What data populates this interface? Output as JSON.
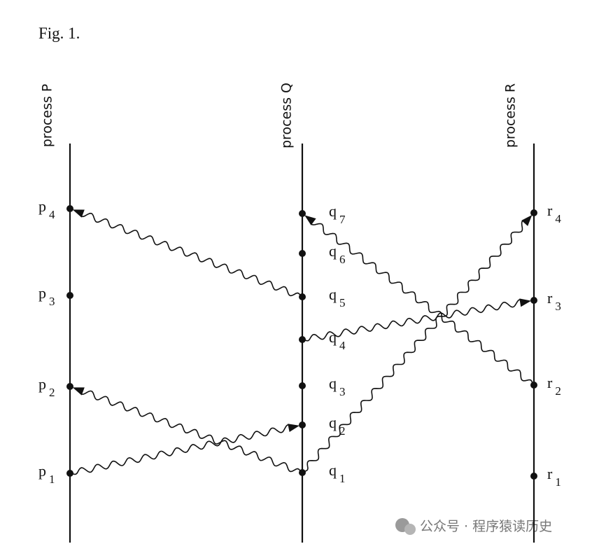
{
  "figure": {
    "title": "Fig. 1.",
    "processes": [
      {
        "label": "process P",
        "events": [
          {
            "name": "p",
            "sub": "1"
          },
          {
            "name": "p",
            "sub": "2"
          },
          {
            "name": "p",
            "sub": "3"
          },
          {
            "name": "p",
            "sub": "4"
          }
        ]
      },
      {
        "label": "process Q",
        "events": [
          {
            "name": "q",
            "sub": "1"
          },
          {
            "name": "q",
            "sub": "2"
          },
          {
            "name": "q",
            "sub": "3"
          },
          {
            "name": "q",
            "sub": "4"
          },
          {
            "name": "q",
            "sub": "5"
          },
          {
            "name": "q",
            "sub": "6"
          },
          {
            "name": "q",
            "sub": "7"
          }
        ]
      },
      {
        "label": "process R",
        "events": [
          {
            "name": "r",
            "sub": "1"
          },
          {
            "name": "r",
            "sub": "2"
          },
          {
            "name": "r",
            "sub": "3"
          },
          {
            "name": "r",
            "sub": "4"
          }
        ]
      }
    ]
  },
  "watermark": "公众号 · 程序猿读历史"
}
